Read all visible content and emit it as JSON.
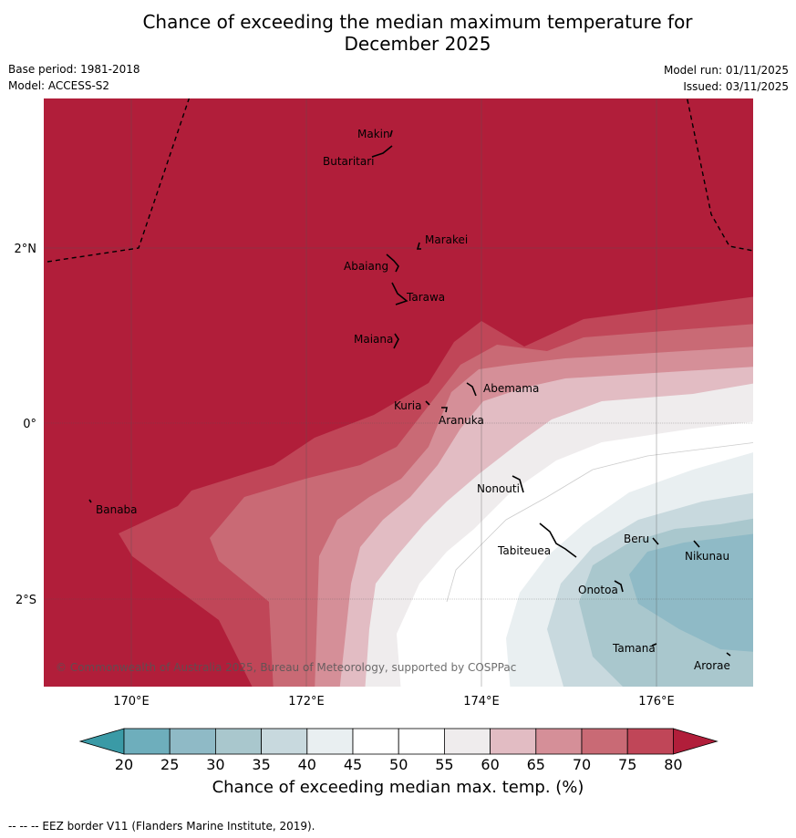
{
  "title_line1": "Chance of exceeding the median maximum temperature for",
  "title_line2": "December 2025",
  "base_period": "Base period: 1981-2018",
  "model": "Model: ACCESS-S2",
  "model_run": "Model run: 01/11/2025",
  "issued": "Issued: 03/11/2025",
  "map": {
    "lon_ticks": [
      "170°E",
      "172°E",
      "174°E",
      "176°E"
    ],
    "lat_ticks": [
      "2°N",
      "0°",
      "2°S"
    ],
    "copyright": "© Commonwealth of Australia 2025, Bureau of Meteorology, supported by COSPPac",
    "islands": [
      {
        "name": "Makin"
      },
      {
        "name": "Butaritari"
      },
      {
        "name": "Marakei"
      },
      {
        "name": "Abaiang"
      },
      {
        "name": "Tarawa"
      },
      {
        "name": "Maiana"
      },
      {
        "name": "Abemama"
      },
      {
        "name": "Kuria"
      },
      {
        "name": "Aranuka"
      },
      {
        "name": "Banaba"
      },
      {
        "name": "Nonouti"
      },
      {
        "name": "Tabiteuea"
      },
      {
        "name": "Beru"
      },
      {
        "name": "Nikunau"
      },
      {
        "name": "Onotoa"
      },
      {
        "name": "Tamana"
      },
      {
        "name": "Arorae"
      }
    ]
  },
  "colorbar": {
    "title": "Chance of exceeding median max. temp. (%)",
    "ticks": [
      "20",
      "25",
      "30",
      "35",
      "40",
      "45",
      "50",
      "55",
      "60",
      "65",
      "70",
      "75",
      "80"
    ],
    "colors": [
      "#3a9aa6",
      "#6eaebc",
      "#8fbac6",
      "#a9c7cd",
      "#c8d9de",
      "#e9eff1",
      "#ffffff",
      "#ffffff",
      "#efeced",
      "#e2bcc3",
      "#d58f98",
      "#c96a75",
      "#c04658",
      "#b11e3a"
    ]
  },
  "footer": "--  --  -- EEZ border V11 (Flanders Marine Institute, 2019)."
}
